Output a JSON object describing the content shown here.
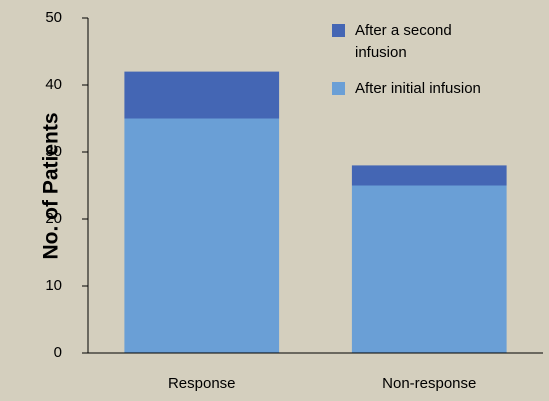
{
  "chart_data": {
    "type": "bar",
    "stacked": true,
    "categories": [
      "Response",
      "Non-response"
    ],
    "series": [
      {
        "name": "After initial infusion",
        "values": [
          35,
          25
        ],
        "color": "#6a9fd6"
      },
      {
        "name": "After a second infusion",
        "values": [
          7,
          3
        ],
        "color": "#4466b4"
      }
    ],
    "ylabel": "No. of Patients",
    "xlabel": "",
    "title": "",
    "ylim": [
      0,
      50
    ],
    "yticks": [
      0,
      10,
      20,
      30,
      40,
      50
    ],
    "grid": false,
    "legend_position": "top-right",
    "legend_order": [
      "After a second infusion",
      "After initial infusion"
    ],
    "legend_lines": {
      "After a second infusion": [
        "After a second",
        "infusion"
      ],
      "After initial infusion": [
        "After initial infusion"
      ]
    },
    "background_color": "#d4cfbe"
  }
}
